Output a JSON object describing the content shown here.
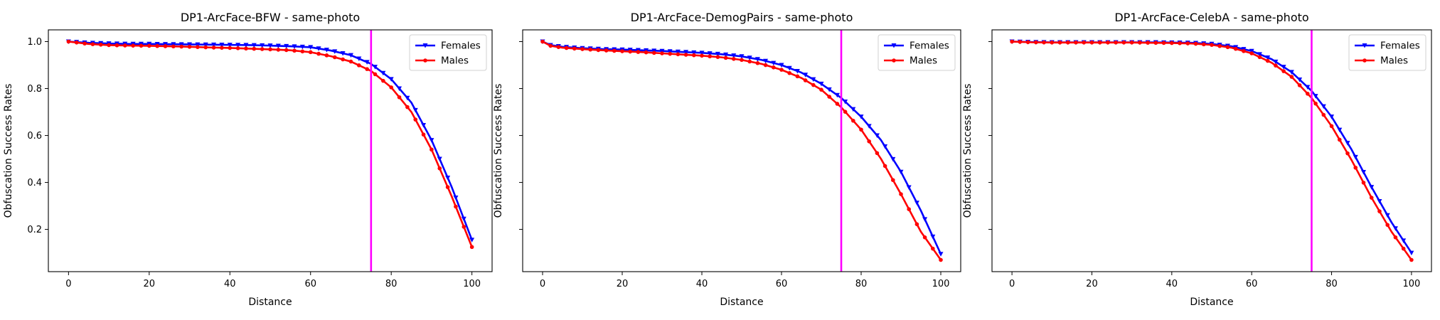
{
  "chart_data": [
    {
      "type": "line",
      "title": "DP1-ArcFace-BFW - same-photo",
      "xlabel": "Distance",
      "ylabel": "Obfuscation Success Rates",
      "xlim": [
        -5,
        105
      ],
      "ylim": [
        0.02,
        1.05
      ],
      "xticks": [
        0,
        20,
        40,
        60,
        80,
        100
      ],
      "yticks": [
        0.2,
        0.4,
        0.6,
        0.8,
        1.0
      ],
      "ytick_labels_visible": true,
      "vline": {
        "x": 75,
        "color": "#ff00ff"
      },
      "legend_position": "top-right",
      "series": [
        {
          "name": "Females",
          "color": "#0000ff",
          "marker": "triangle-down",
          "x": [
            0,
            5,
            10,
            15,
            20,
            25,
            30,
            35,
            40,
            45,
            50,
            55,
            60,
            65,
            70,
            75,
            80,
            85,
            90,
            95,
            100
          ],
          "y": [
            1.0,
            0.995,
            0.992,
            0.99,
            0.99,
            0.989,
            0.988,
            0.987,
            0.986,
            0.985,
            0.983,
            0.98,
            0.976,
            0.962,
            0.942,
            0.905,
            0.84,
            0.74,
            0.58,
            0.38,
            0.155
          ]
        },
        {
          "name": "Males",
          "color": "#ff0000",
          "marker": "circle",
          "x": [
            0,
            5,
            10,
            15,
            20,
            25,
            30,
            35,
            40,
            45,
            50,
            55,
            60,
            65,
            70,
            75,
            80,
            85,
            90,
            95,
            100
          ],
          "y": [
            1.0,
            0.99,
            0.985,
            0.983,
            0.982,
            0.98,
            0.978,
            0.975,
            0.973,
            0.97,
            0.967,
            0.963,
            0.955,
            0.938,
            0.915,
            0.875,
            0.805,
            0.7,
            0.54,
            0.34,
            0.125
          ]
        }
      ]
    },
    {
      "type": "line",
      "title": "DP1-ArcFace-DemogPairs - same-photo",
      "xlabel": "Distance",
      "ylabel": "Obfuscation Success Rates",
      "xlim": [
        -5,
        105
      ],
      "ylim": [
        0.02,
        1.05
      ],
      "xticks": [
        0,
        20,
        40,
        60,
        80,
        100
      ],
      "yticks": [
        0.2,
        0.4,
        0.6,
        0.8,
        1.0
      ],
      "ytick_labels_visible": false,
      "vline": {
        "x": 75,
        "color": "#ff00ff"
      },
      "legend_position": "top-right",
      "series": [
        {
          "name": "Females",
          "color": "#0000ff",
          "marker": "triangle-down",
          "x": [
            0,
            2,
            5,
            10,
            15,
            20,
            25,
            30,
            35,
            40,
            45,
            50,
            55,
            60,
            65,
            70,
            75,
            80,
            85,
            90,
            95,
            100
          ],
          "y": [
            1.0,
            0.985,
            0.978,
            0.972,
            0.968,
            0.966,
            0.963,
            0.96,
            0.956,
            0.952,
            0.946,
            0.937,
            0.922,
            0.9,
            0.868,
            0.82,
            0.76,
            0.68,
            0.58,
            0.445,
            0.28,
            0.095
          ]
        },
        {
          "name": "Males",
          "color": "#ff0000",
          "marker": "circle",
          "x": [
            0,
            2,
            5,
            10,
            15,
            20,
            25,
            30,
            35,
            40,
            45,
            50,
            55,
            60,
            65,
            70,
            75,
            80,
            85,
            90,
            95,
            100
          ],
          "y": [
            1.0,
            0.982,
            0.974,
            0.968,
            0.963,
            0.959,
            0.955,
            0.95,
            0.945,
            0.94,
            0.933,
            0.922,
            0.905,
            0.88,
            0.845,
            0.795,
            0.72,
            0.625,
            0.5,
            0.35,
            0.19,
            0.07
          ]
        }
      ]
    },
    {
      "type": "line",
      "title": "DP1-ArcFace-CelebA - same-photo",
      "xlabel": "Distance",
      "ylabel": "Obfuscation Success Rates",
      "xlim": [
        -5,
        105
      ],
      "ylim": [
        0.02,
        1.05
      ],
      "xticks": [
        0,
        20,
        40,
        60,
        80,
        100
      ],
      "yticks": [
        0.2,
        0.4,
        0.6,
        0.8,
        1.0
      ],
      "ytick_labels_visible": false,
      "vline": {
        "x": 75,
        "color": "#ff00ff"
      },
      "legend_position": "top-right",
      "series": [
        {
          "name": "Females",
          "color": "#0000ff",
          "marker": "triangle-down",
          "x": [
            0,
            5,
            10,
            15,
            20,
            25,
            30,
            35,
            40,
            45,
            50,
            55,
            60,
            65,
            70,
            75,
            80,
            85,
            90,
            95,
            100
          ],
          "y": [
            1.0,
            0.998,
            0.997,
            0.997,
            0.997,
            0.997,
            0.997,
            0.997,
            0.996,
            0.995,
            0.99,
            0.98,
            0.96,
            0.925,
            0.87,
            0.79,
            0.68,
            0.54,
            0.38,
            0.23,
            0.1
          ]
        },
        {
          "name": "Males",
          "color": "#ff0000",
          "marker": "circle",
          "x": [
            0,
            5,
            10,
            15,
            20,
            25,
            30,
            35,
            40,
            45,
            50,
            55,
            60,
            65,
            70,
            75,
            80,
            85,
            90,
            95,
            100
          ],
          "y": [
            1.0,
            0.997,
            0.996,
            0.996,
            0.996,
            0.996,
            0.996,
            0.995,
            0.994,
            0.992,
            0.986,
            0.974,
            0.95,
            0.91,
            0.85,
            0.76,
            0.64,
            0.495,
            0.335,
            0.19,
            0.07
          ]
        }
      ]
    }
  ]
}
